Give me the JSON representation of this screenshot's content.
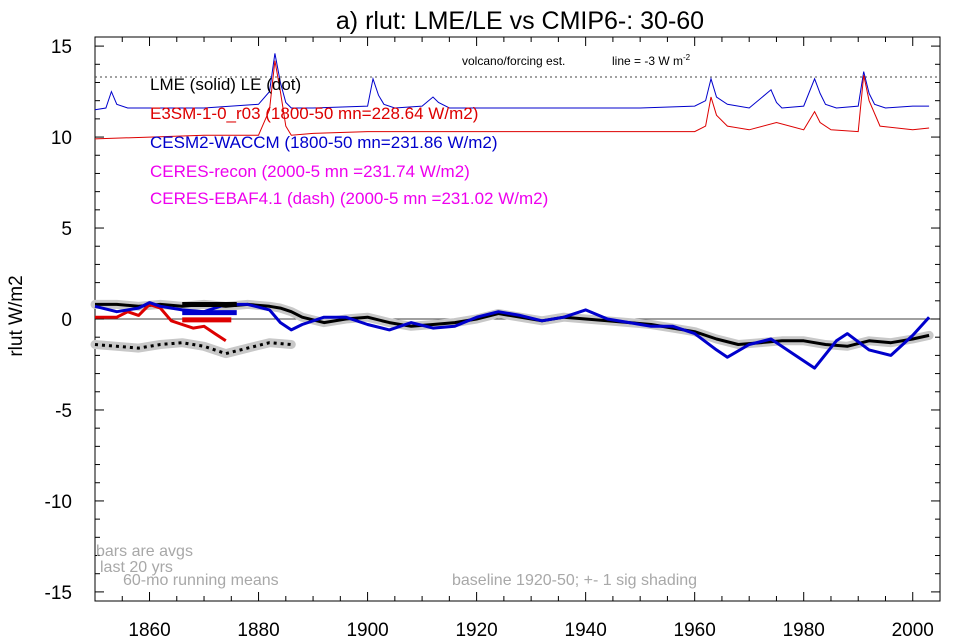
{
  "chart_data": {
    "type": "line",
    "title": "a) rlut: LME/LE vs CMIP6-: 30-60",
    "ylabel": "rlut W/m2",
    "xlabel": "",
    "xlim": [
      1850,
      2005
    ],
    "ylim": [
      -15.5,
      15.5
    ],
    "x_ticks": [
      1860,
      1880,
      1900,
      1920,
      1940,
      1960,
      1980,
      2000
    ],
    "y_ticks": [
      -15,
      -10,
      -5,
      0,
      5,
      10,
      15
    ],
    "grid": false,
    "zero_line": 0,
    "reference_line": {
      "value": 13.3,
      "label": "line = -3 W m",
      "superscript": "-2",
      "style": "dotted"
    },
    "volcano_label": "volcano/forcing est.",
    "legend": [
      {
        "text": "LME (solid)   LE (dot)",
        "color": "#000000"
      },
      {
        "text": "E3SM-1-0_r03 (1800-50 mn=228.64 W/m2)",
        "color": "#dd0000"
      },
      {
        "text": "CESM2-WACCM (1800-50 mn=231.86 W/m2)",
        "color": "#0000cc"
      },
      {
        "text": "CERES-recon (2000-5 mn =231.74 W/m2)",
        "color": "#ee00ee"
      },
      {
        "text": "CERES-EBAF4.1 (dash) (2000-5 mn =231.02 W/m2)",
        "color": "#ee00ee"
      }
    ],
    "notes": {
      "bars": [
        "bars are avgs",
        "last 20 yrs"
      ],
      "running": "60-mo running means",
      "baseline": "baseline 1920-50; +- 1 sig shading"
    },
    "series": [
      {
        "name": "LME",
        "color": "#000000",
        "x": [
          1850,
          1854,
          1858,
          1862,
          1866,
          1870,
          1874,
          1878,
          1882,
          1884,
          1886,
          1888,
          1892,
          1896,
          1900,
          1904,
          1908,
          1912,
          1916,
          1920,
          1924,
          1928,
          1932,
          1936,
          1940,
          1944,
          1948,
          1952,
          1956,
          1960,
          1964,
          1968,
          1972,
          1976,
          1980,
          1984,
          1988,
          1992,
          1996,
          2000,
          2003
        ],
        "y": [
          0.8,
          0.8,
          0.7,
          0.8,
          0.7,
          0.8,
          0.7,
          0.8,
          0.7,
          0.6,
          0.4,
          0.1,
          -0.2,
          0.0,
          0.1,
          -0.2,
          -0.4,
          -0.3,
          -0.2,
          0.0,
          0.3,
          0.1,
          -0.1,
          0.1,
          0.0,
          -0.1,
          -0.2,
          -0.3,
          -0.5,
          -0.7,
          -1.1,
          -1.4,
          -1.3,
          -1.2,
          -1.2,
          -1.4,
          -1.5,
          -1.2,
          -1.3,
          -1.1,
          -0.9
        ]
      },
      {
        "name": "LE",
        "color": "#000000",
        "x": [
          1850,
          1854,
          1858,
          1862,
          1866,
          1870,
          1874,
          1878,
          1882,
          1886
        ],
        "y": [
          -1.4,
          -1.5,
          -1.6,
          -1.4,
          -1.3,
          -1.5,
          -1.9,
          -1.6,
          -1.3,
          -1.4
        ]
      },
      {
        "name": "E3SM-1-0_r03",
        "color": "#dd0000",
        "x": [
          1850,
          1854,
          1856,
          1858,
          1860,
          1862,
          1864,
          1866,
          1868,
          1870,
          1872,
          1874
        ],
        "y": [
          0.1,
          0.1,
          0.4,
          0.2,
          0.8,
          0.6,
          -0.1,
          -0.3,
          -0.5,
          -0.4,
          -0.8,
          -1.2
        ]
      },
      {
        "name": "CESM2-WACCM",
        "color": "#0000cc",
        "x": [
          1850,
          1854,
          1858,
          1860,
          1862,
          1866,
          1870,
          1874,
          1878,
          1882,
          1884,
          1886,
          1888,
          1892,
          1896,
          1900,
          1904,
          1908,
          1912,
          1916,
          1920,
          1924,
          1928,
          1932,
          1936,
          1940,
          1944,
          1948,
          1952,
          1956,
          1960,
          1964,
          1966,
          1970,
          1974,
          1978,
          1982,
          1986,
          1988,
          1992,
          1996,
          2000,
          2003
        ],
        "y": [
          0.7,
          0.4,
          0.6,
          0.9,
          0.7,
          0.5,
          0.4,
          0.8,
          0.8,
          0.5,
          -0.2,
          -0.6,
          -0.3,
          0.1,
          0.1,
          -0.3,
          -0.6,
          -0.2,
          -0.5,
          -0.4,
          0.1,
          0.4,
          0.2,
          -0.1,
          0.1,
          0.5,
          0.0,
          -0.2,
          -0.4,
          -0.4,
          -0.8,
          -1.7,
          -2.1,
          -1.4,
          -1.1,
          -1.9,
          -2.7,
          -1.2,
          -0.8,
          -1.7,
          -2.0,
          -0.9,
          0.1
        ]
      }
    ],
    "volcano_series": [
      {
        "name": "CESM2-WACCM volcano",
        "color": "#0000cc",
        "x": [
          1850,
          1852,
          1853,
          1854,
          1856,
          1860,
          1870,
          1880,
          1882,
          1883,
          1884,
          1885,
          1886,
          1888,
          1890,
          1900,
          1901,
          1902,
          1903,
          1905,
          1910,
          1912,
          1913,
          1915,
          1920,
          1930,
          1940,
          1950,
          1960,
          1962,
          1963,
          1964,
          1966,
          1970,
          1974,
          1975,
          1976,
          1980,
          1982,
          1983,
          1984,
          1986,
          1990,
          1991,
          1992,
          1993,
          1995,
          2000,
          2003
        ],
        "y": [
          11.5,
          11.6,
          12.5,
          11.8,
          11.6,
          11.6,
          11.6,
          11.8,
          12.5,
          14.6,
          13.0,
          11.9,
          11.6,
          11.6,
          11.6,
          11.7,
          13.2,
          12.3,
          11.8,
          11.6,
          11.7,
          12.2,
          11.9,
          11.6,
          11.6,
          11.6,
          11.6,
          11.6,
          11.7,
          12.0,
          13.2,
          12.2,
          11.8,
          11.6,
          12.6,
          11.9,
          11.6,
          11.7,
          13.2,
          12.4,
          11.8,
          11.6,
          11.7,
          13.6,
          12.4,
          11.8,
          11.6,
          11.7,
          11.7
        ]
      },
      {
        "name": "E3SM-1-0_r03 volcano",
        "color": "#dd0000",
        "x": [
          1850,
          1860,
          1870,
          1880,
          1882,
          1883,
          1884,
          1885,
          1886,
          1890,
          1900,
          1905,
          1920,
          1940,
          1960,
          1962,
          1963,
          1964,
          1966,
          1970,
          1975,
          1980,
          1982,
          1983,
          1985,
          1990,
          1991,
          1992,
          1994,
          2000,
          2003
        ],
        "y": [
          9.9,
          10.0,
          10.1,
          10.1,
          11.5,
          14.2,
          12.5,
          10.6,
          10.1,
          10.2,
          10.3,
          10.3,
          10.3,
          10.3,
          10.3,
          10.6,
          12.2,
          11.2,
          10.6,
          10.4,
          10.8,
          10.4,
          11.4,
          10.8,
          10.4,
          10.3,
          13.4,
          12.0,
          10.6,
          10.4,
          10.5
        ]
      }
    ],
    "bars": [
      {
        "series": "LME",
        "color": "#000000",
        "x0": 1866,
        "x1": 1876,
        "y": 0.8
      },
      {
        "series": "CESM2-WACCM",
        "color": "#0000cc",
        "x0": 1866,
        "x1": 1876,
        "y": 0.35
      },
      {
        "series": "E3SM-1-0_r03",
        "color": "#dd0000",
        "x0": 1866,
        "x1": 1875,
        "y": -0.05
      }
    ]
  }
}
